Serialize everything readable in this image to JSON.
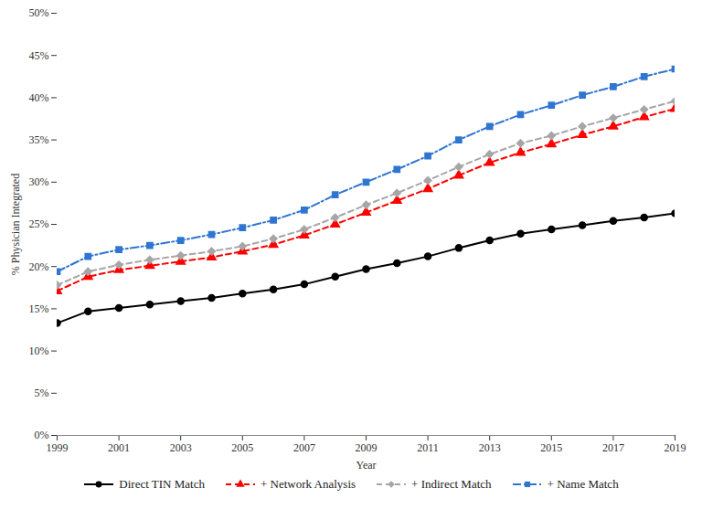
{
  "chart_data": {
    "type": "line",
    "x_label": "Year",
    "y_label": "% Physician Integrated",
    "x": [
      1999,
      2000,
      2001,
      2002,
      2003,
      2004,
      2005,
      2006,
      2007,
      2008,
      2009,
      2010,
      2011,
      2012,
      2013,
      2014,
      2015,
      2016,
      2017,
      2018,
      2019
    ],
    "xlim": [
      1999,
      2019
    ],
    "xticks": [
      1999,
      2001,
      2003,
      2005,
      2007,
      2009,
      2011,
      2013,
      2015,
      2017,
      2019
    ],
    "ylim": [
      0,
      50
    ],
    "yticks": [
      {
        "value": 0,
        "label": "0%"
      },
      {
        "value": 5,
        "label": "5%"
      },
      {
        "value": 10,
        "label": "10%"
      },
      {
        "value": 15,
        "label": "15%"
      },
      {
        "value": 20,
        "label": "20%"
      },
      {
        "value": 25,
        "label": "25%"
      },
      {
        "value": 30,
        "label": "30%"
      },
      {
        "value": 35,
        "label": "35%"
      },
      {
        "value": 40,
        "label": "40%"
      },
      {
        "value": 45,
        "label": "45%"
      },
      {
        "value": 50,
        "label": "50%"
      }
    ],
    "grid": false,
    "legend": "bottom",
    "series": [
      {
        "name": "Direct TIN Match",
        "color": "#000000",
        "marker": "circle",
        "line_style": "solid",
        "values": [
          13.3,
          14.7,
          15.1,
          15.5,
          15.9,
          16.3,
          16.8,
          17.3,
          17.9,
          18.8,
          19.7,
          20.4,
          21.2,
          22.2,
          23.1,
          23.9,
          24.4,
          24.9,
          25.4,
          25.8,
          26.3
        ]
      },
      {
        "name": "+ Network Analysis",
        "color": "#ff0000",
        "marker": "triangle",
        "line_style": "dashed",
        "values": [
          17.1,
          18.8,
          19.6,
          20.1,
          20.6,
          21.1,
          21.8,
          22.6,
          23.7,
          25.0,
          26.4,
          27.8,
          29.2,
          30.8,
          32.3,
          33.5,
          34.5,
          35.6,
          36.6,
          37.7,
          38.7
        ]
      },
      {
        "name": "+ Indirect Match",
        "color": "#a6a6a6",
        "marker": "diamond",
        "line_style": "dashed",
        "values": [
          17.8,
          19.4,
          20.2,
          20.8,
          21.3,
          21.8,
          22.4,
          23.3,
          24.4,
          25.8,
          27.3,
          28.7,
          30.2,
          31.8,
          33.3,
          34.6,
          35.5,
          36.6,
          37.6,
          38.6,
          39.6
        ]
      },
      {
        "name": "+ Name Match",
        "color": "#2f75d1",
        "marker": "square",
        "line_style": "dashdot",
        "values": [
          19.4,
          21.2,
          22.0,
          22.5,
          23.1,
          23.8,
          24.6,
          25.5,
          26.7,
          28.5,
          30.0,
          31.5,
          33.1,
          35.0,
          36.6,
          38.0,
          39.1,
          40.3,
          41.3,
          42.5,
          43.4
        ]
      }
    ]
  }
}
